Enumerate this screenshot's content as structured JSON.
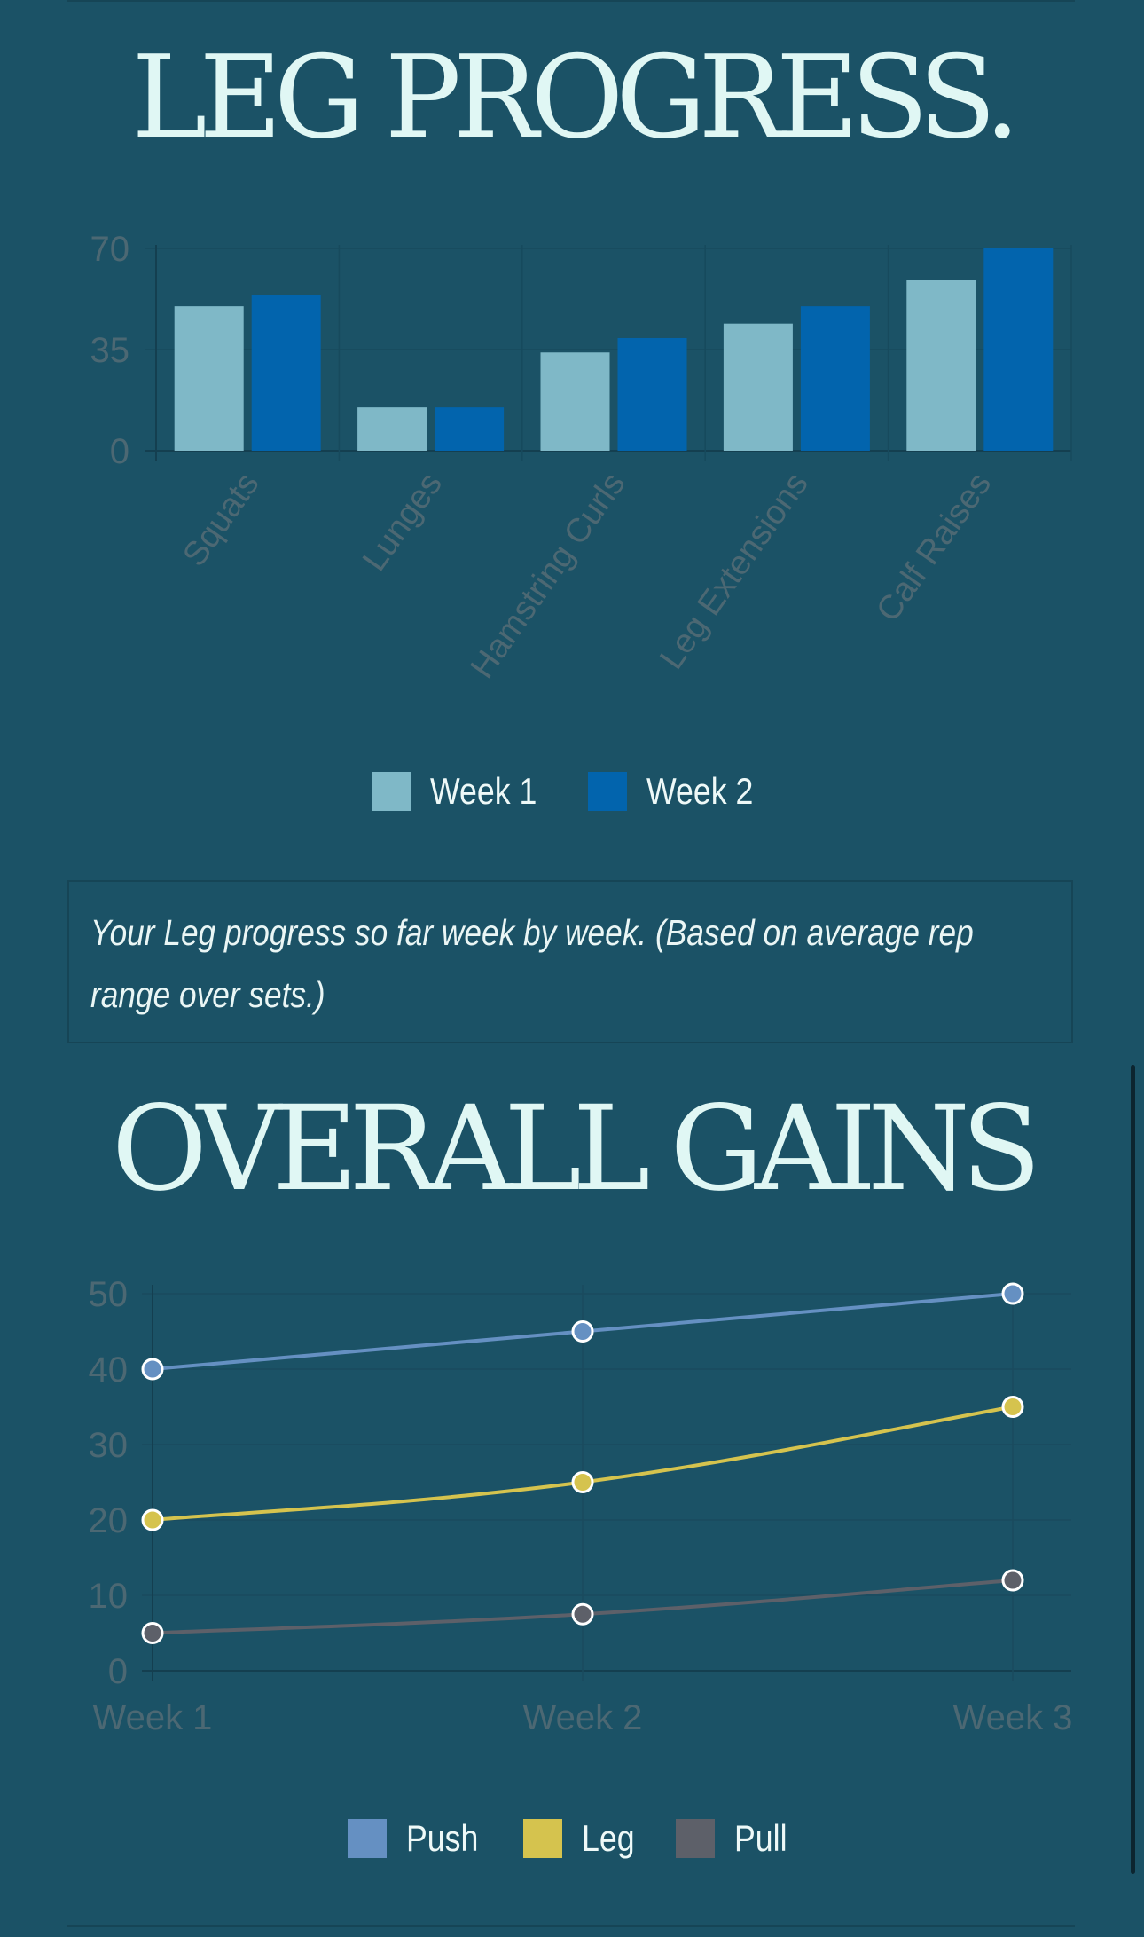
{
  "page": {
    "leg_title": "LEG PROGRESS.",
    "caption": "Your Leg progress so far week by week. (Based on average rep range over sets.)",
    "gains_title": "OVERALL GAINS"
  },
  "colors": {
    "background": "#1b5266",
    "week1": "#7fb8c7",
    "week2": "#0264ad",
    "push": "#6590c2",
    "leg": "#d5c34e",
    "pull": "#5d6069",
    "axis_text": "#4c6873"
  },
  "chart_data": [
    {
      "type": "bar",
      "title": "LEG PROGRESS.",
      "categories": [
        "Squats",
        "Lunges",
        "Hamstring Curls",
        "Leg Extensions",
        "Calf Raises"
      ],
      "series": [
        {
          "name": "Week 1",
          "values": [
            50,
            15,
            34,
            44,
            59
          ]
        },
        {
          "name": "Week 2",
          "values": [
            54,
            15,
            39,
            50,
            70
          ]
        }
      ],
      "ylim": [
        0,
        70
      ],
      "yticks": [
        "0",
        "35",
        "70"
      ],
      "grid": true,
      "legend": "bottom"
    },
    {
      "type": "line",
      "title": "OVERALL GAINS",
      "categories": [
        "Week 1",
        "Week 2",
        "Week 3"
      ],
      "series": [
        {
          "name": "Push",
          "values": [
            40,
            45,
            50
          ]
        },
        {
          "name": "Leg",
          "values": [
            20,
            25,
            35
          ]
        },
        {
          "name": "Pull",
          "values": [
            5,
            7.5,
            12
          ]
        }
      ],
      "ylim": [
        0,
        50
      ],
      "yticks": [
        "0",
        "10",
        "20",
        "30",
        "40",
        "50"
      ],
      "grid": true,
      "legend": "bottom"
    }
  ]
}
